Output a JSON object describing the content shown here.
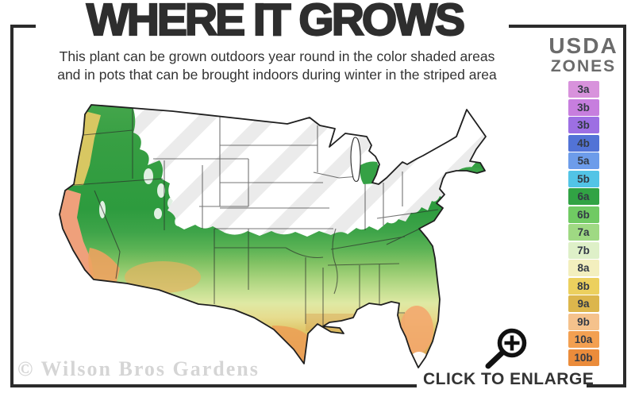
{
  "header": {
    "title": "WHERE IT GROWS",
    "subtitle1": "This plant can be grown outdoors year round in the color shaded areas",
    "subtitle2": "and in pots that can be brought indoors during winter in the striped area"
  },
  "legend": {
    "heading_top": "USDA",
    "heading_bottom": "ZONES",
    "zones": [
      {
        "label": "3a",
        "color": "#d892dc"
      },
      {
        "label": "3b",
        "color": "#c77ede"
      },
      {
        "label": "3b",
        "color": "#9d6fe3"
      },
      {
        "label": "4b",
        "color": "#5273d6"
      },
      {
        "label": "5a",
        "color": "#6d9cea"
      },
      {
        "label": "5b",
        "color": "#52c4e6"
      },
      {
        "label": "6a",
        "color": "#31a344"
      },
      {
        "label": "6b",
        "color": "#70ca63"
      },
      {
        "label": "7a",
        "color": "#9fd983"
      },
      {
        "label": "7b",
        "color": "#def0c8"
      },
      {
        "label": "8a",
        "color": "#f3efbe"
      },
      {
        "label": "8b",
        "color": "#ecd05e"
      },
      {
        "label": "9a",
        "color": "#dcb64c"
      },
      {
        "label": "9b",
        "color": "#f5c28c"
      },
      {
        "label": "10a",
        "color": "#f3a051"
      },
      {
        "label": "10b",
        "color": "#eb8c3b"
      }
    ]
  },
  "watermark": {
    "text": "© Wilson Bros Gardens"
  },
  "cta": {
    "label": "CLICK TO ENLARGE"
  },
  "frame": {
    "color": "#2b2b2b"
  }
}
